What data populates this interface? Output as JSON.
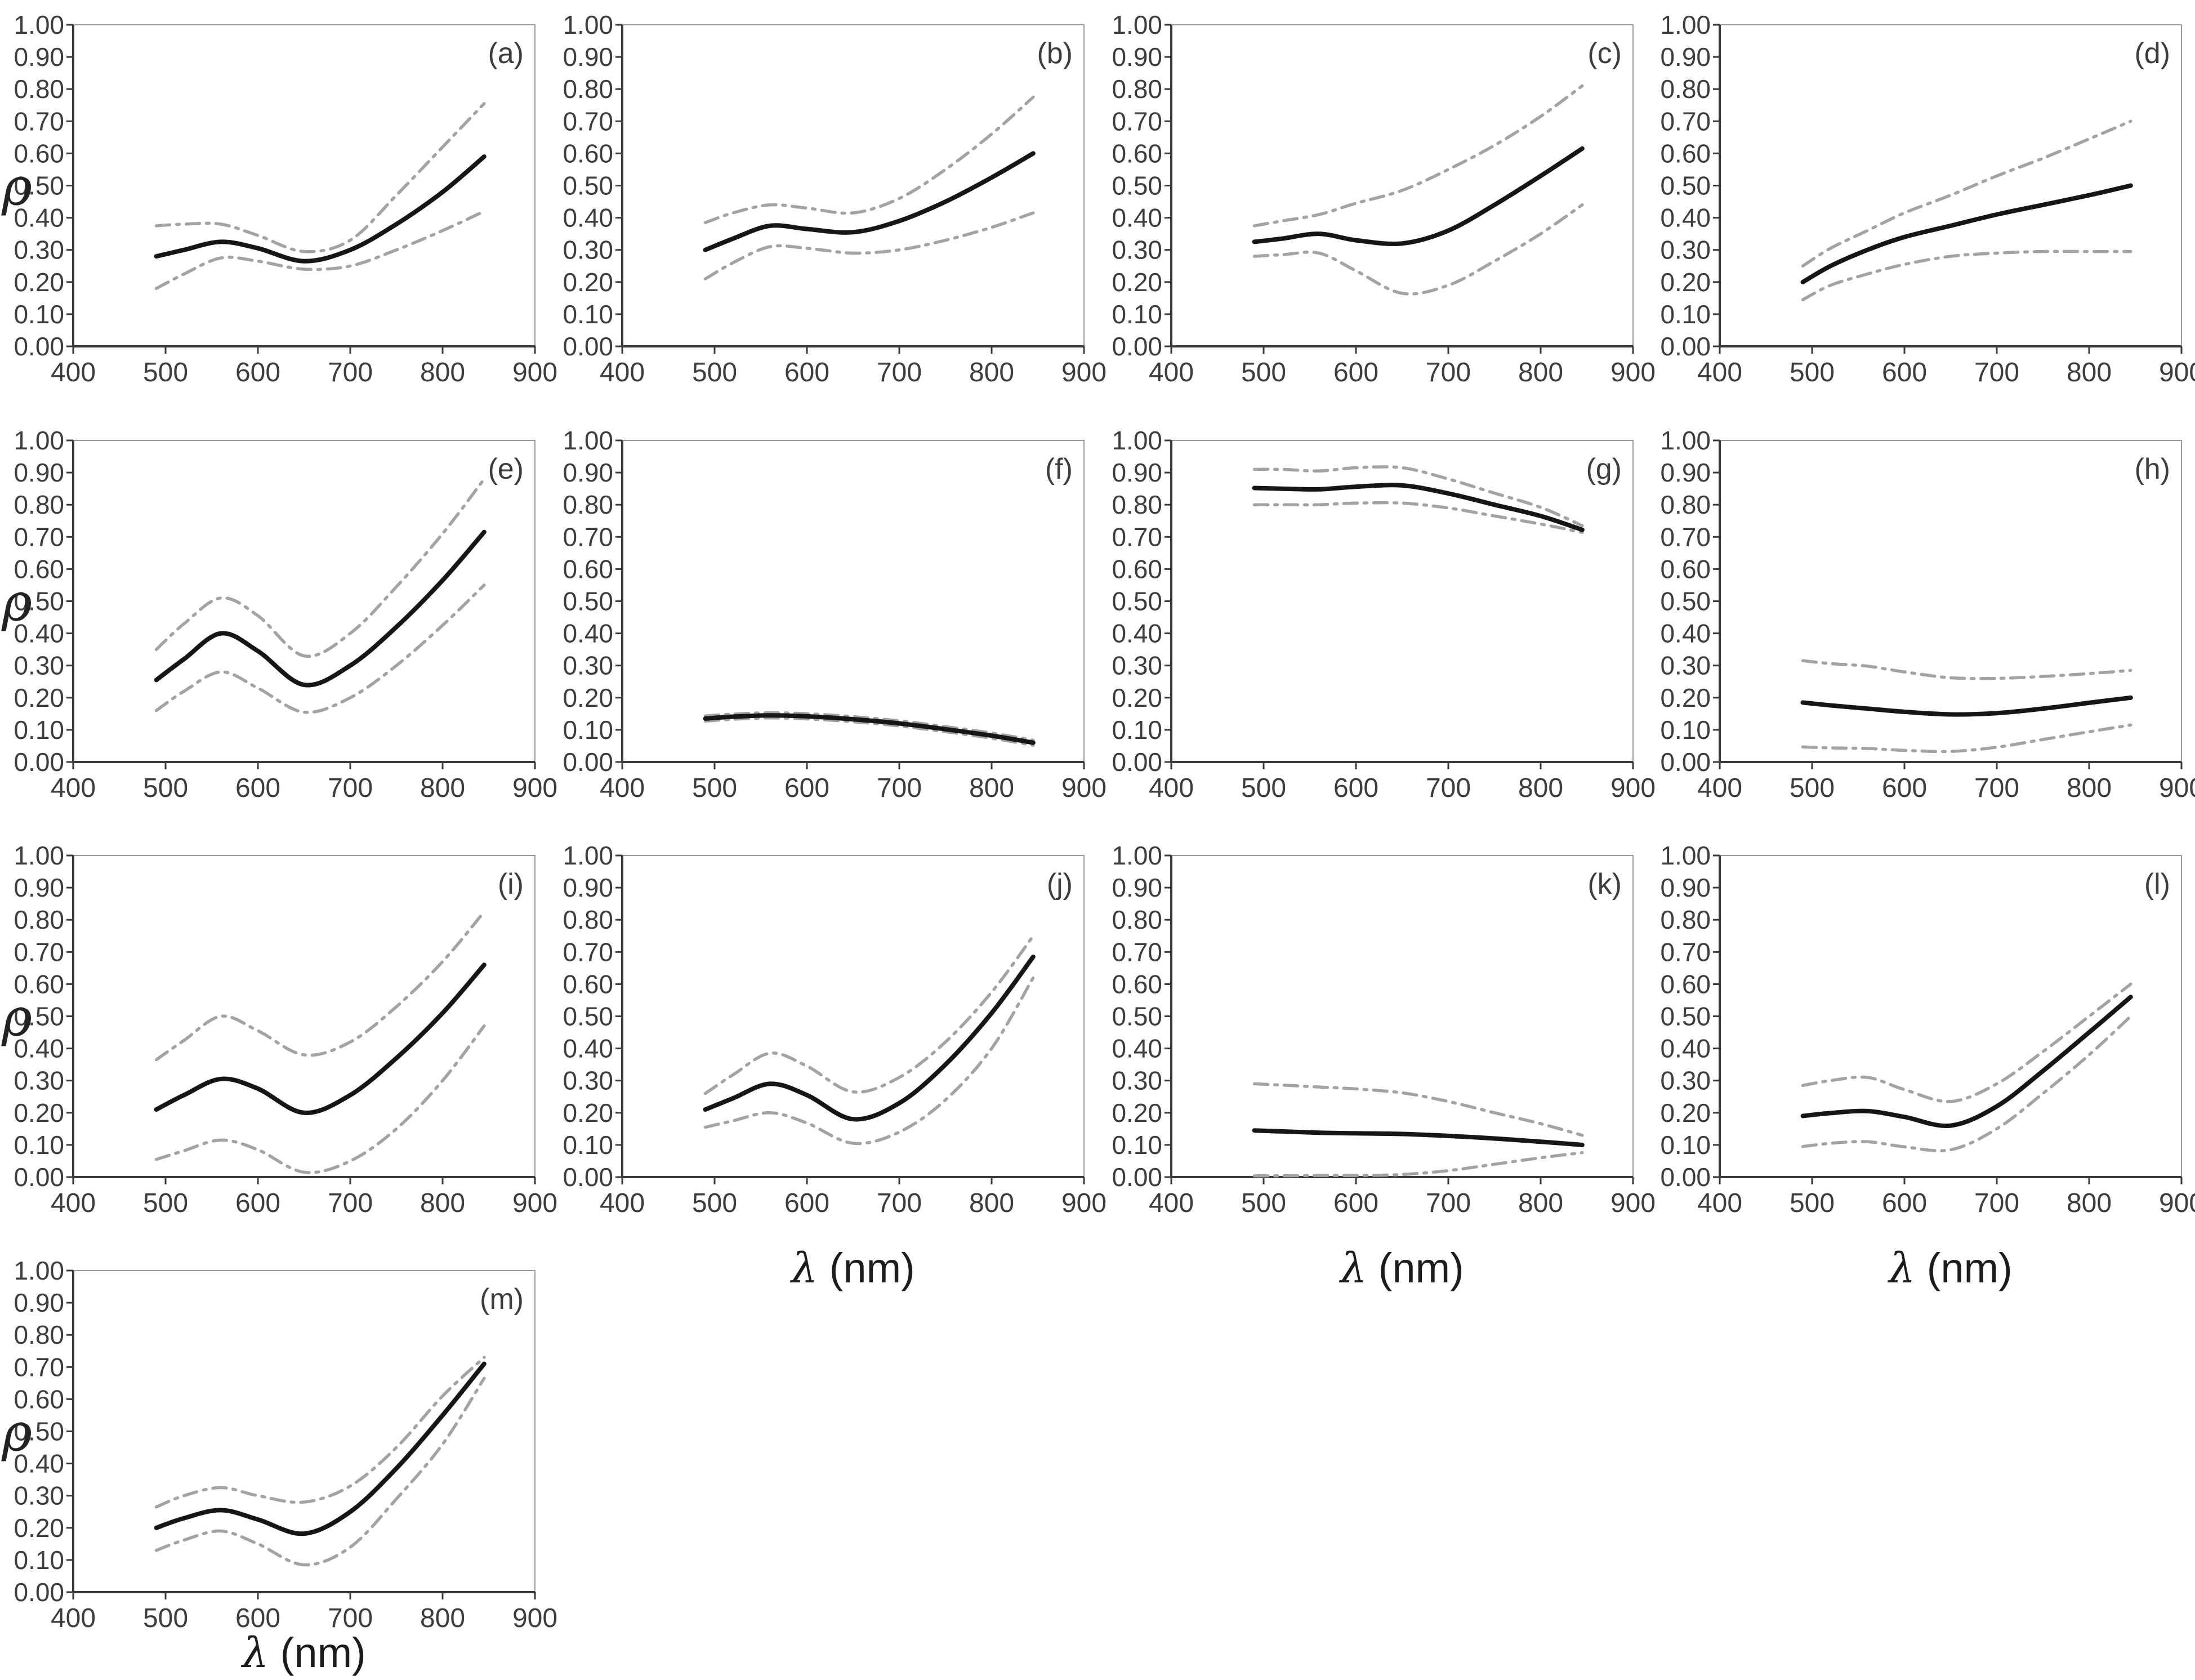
{
  "figure": {
    "ylabel": "ρ",
    "xlabel": "λ (nm)",
    "xlim": [
      400,
      900
    ],
    "ylim": [
      0.0,
      1.0
    ],
    "xticks": [
      "400",
      "500",
      "600",
      "700",
      "800",
      "900"
    ],
    "yticks": [
      "0.00",
      "0.10",
      "0.20",
      "0.30",
      "0.40",
      "0.50",
      "0.60",
      "0.70",
      "0.80",
      "0.90",
      "1.00"
    ],
    "grid": false,
    "legend": "none",
    "colors": {
      "mean_line": "#161616",
      "ci_band_line": "#a3a3a3",
      "axis": "#3a3a3a",
      "frame": "#9b9b9b",
      "tick_text": "#3d3d3d"
    },
    "line_styles": {
      "mean": "solid",
      "ci": "dash-dot"
    }
  },
  "chart_data": [
    {
      "type": "line",
      "label": "(a)",
      "row": 0,
      "col": 0,
      "show_ylabel": true,
      "show_xlabel": false,
      "x": [
        490,
        520,
        560,
        600,
        650,
        700,
        750,
        800,
        845
      ],
      "series": [
        {
          "name": "mean",
          "values": [
            0.28,
            0.3,
            0.325,
            0.305,
            0.265,
            0.3,
            0.38,
            0.48,
            0.59
          ]
        },
        {
          "name": "upper_ci",
          "values": [
            0.375,
            0.38,
            0.38,
            0.345,
            0.295,
            0.33,
            0.47,
            0.62,
            0.755
          ]
        },
        {
          "name": "lower_ci",
          "values": [
            0.18,
            0.225,
            0.275,
            0.265,
            0.24,
            0.25,
            0.3,
            0.36,
            0.42
          ]
        }
      ]
    },
    {
      "type": "line",
      "label": "(b)",
      "row": 0,
      "col": 1,
      "show_ylabel": false,
      "show_xlabel": false,
      "x": [
        490,
        520,
        560,
        600,
        650,
        700,
        750,
        800,
        845
      ],
      "series": [
        {
          "name": "mean",
          "values": [
            0.3,
            0.335,
            0.375,
            0.365,
            0.355,
            0.39,
            0.45,
            0.525,
            0.6
          ]
        },
        {
          "name": "upper_ci",
          "values": [
            0.385,
            0.415,
            0.44,
            0.43,
            0.415,
            0.46,
            0.55,
            0.66,
            0.775
          ]
        },
        {
          "name": "lower_ci",
          "values": [
            0.21,
            0.26,
            0.31,
            0.305,
            0.29,
            0.3,
            0.33,
            0.37,
            0.415
          ]
        }
      ]
    },
    {
      "type": "line",
      "label": "(c)",
      "row": 0,
      "col": 2,
      "show_ylabel": false,
      "show_xlabel": false,
      "x": [
        490,
        520,
        560,
        600,
        650,
        700,
        750,
        800,
        845
      ],
      "series": [
        {
          "name": "mean",
          "values": [
            0.325,
            0.335,
            0.35,
            0.33,
            0.32,
            0.36,
            0.44,
            0.53,
            0.615
          ]
        },
        {
          "name": "upper_ci",
          "values": [
            0.375,
            0.39,
            0.41,
            0.445,
            0.485,
            0.55,
            0.625,
            0.715,
            0.81
          ]
        },
        {
          "name": "lower_ci",
          "values": [
            0.28,
            0.285,
            0.29,
            0.235,
            0.165,
            0.19,
            0.265,
            0.35,
            0.44
          ]
        }
      ]
    },
    {
      "type": "line",
      "label": "(d)",
      "row": 0,
      "col": 3,
      "show_ylabel": false,
      "show_xlabel": false,
      "x": [
        490,
        520,
        560,
        600,
        650,
        700,
        750,
        800,
        845
      ],
      "series": [
        {
          "name": "mean",
          "values": [
            0.2,
            0.25,
            0.3,
            0.34,
            0.375,
            0.41,
            0.44,
            0.47,
            0.5
          ]
        },
        {
          "name": "upper_ci",
          "values": [
            0.25,
            0.305,
            0.36,
            0.415,
            0.47,
            0.53,
            0.585,
            0.645,
            0.7
          ]
        },
        {
          "name": "lower_ci",
          "values": [
            0.145,
            0.19,
            0.225,
            0.255,
            0.28,
            0.29,
            0.295,
            0.295,
            0.295
          ]
        }
      ]
    },
    {
      "type": "line",
      "label": "(e)",
      "row": 1,
      "col": 0,
      "show_ylabel": true,
      "show_xlabel": false,
      "x": [
        490,
        520,
        560,
        600,
        650,
        700,
        750,
        800,
        845
      ],
      "series": [
        {
          "name": "mean",
          "values": [
            0.255,
            0.32,
            0.4,
            0.345,
            0.24,
            0.3,
            0.42,
            0.565,
            0.715
          ]
        },
        {
          "name": "upper_ci",
          "values": [
            0.35,
            0.43,
            0.51,
            0.455,
            0.33,
            0.4,
            0.545,
            0.71,
            0.88
          ]
        },
        {
          "name": "lower_ci",
          "values": [
            0.16,
            0.22,
            0.28,
            0.23,
            0.155,
            0.2,
            0.3,
            0.425,
            0.55
          ]
        }
      ]
    },
    {
      "type": "line",
      "label": "(f)",
      "row": 1,
      "col": 1,
      "show_ylabel": false,
      "show_xlabel": false,
      "x": [
        490,
        520,
        560,
        600,
        650,
        700,
        750,
        800,
        845
      ],
      "series": [
        {
          "name": "mean",
          "values": [
            0.135,
            0.141,
            0.145,
            0.142,
            0.133,
            0.12,
            0.102,
            0.082,
            0.06
          ]
        },
        {
          "name": "upper_ci",
          "values": [
            0.143,
            0.149,
            0.153,
            0.15,
            0.141,
            0.128,
            0.11,
            0.09,
            0.068
          ]
        },
        {
          "name": "lower_ci",
          "values": [
            0.127,
            0.133,
            0.137,
            0.134,
            0.125,
            0.112,
            0.094,
            0.074,
            0.052
          ]
        }
      ]
    },
    {
      "type": "line",
      "label": "(g)",
      "row": 1,
      "col": 2,
      "show_ylabel": false,
      "show_xlabel": false,
      "x": [
        490,
        520,
        560,
        600,
        650,
        700,
        750,
        800,
        845
      ],
      "series": [
        {
          "name": "mean",
          "values": [
            0.852,
            0.85,
            0.848,
            0.856,
            0.86,
            0.835,
            0.8,
            0.765,
            0.722
          ]
        },
        {
          "name": "upper_ci",
          "values": [
            0.91,
            0.91,
            0.905,
            0.915,
            0.915,
            0.88,
            0.836,
            0.792,
            0.735
          ]
        },
        {
          "name": "lower_ci",
          "values": [
            0.8,
            0.8,
            0.8,
            0.805,
            0.805,
            0.79,
            0.765,
            0.74,
            0.714
          ]
        }
      ]
    },
    {
      "type": "line",
      "label": "(h)",
      "row": 1,
      "col": 3,
      "show_ylabel": false,
      "show_xlabel": false,
      "x": [
        490,
        520,
        560,
        600,
        650,
        700,
        750,
        800,
        845
      ],
      "series": [
        {
          "name": "mean",
          "values": [
            0.185,
            0.176,
            0.166,
            0.156,
            0.148,
            0.152,
            0.166,
            0.184,
            0.2
          ]
        },
        {
          "name": "upper_ci",
          "values": [
            0.315,
            0.306,
            0.298,
            0.28,
            0.262,
            0.26,
            0.266,
            0.275,
            0.285
          ]
        },
        {
          "name": "lower_ci",
          "values": [
            0.047,
            0.044,
            0.042,
            0.036,
            0.033,
            0.046,
            0.07,
            0.094,
            0.115
          ]
        }
      ]
    },
    {
      "type": "line",
      "label": "(i)",
      "row": 2,
      "col": 0,
      "show_ylabel": true,
      "show_xlabel": false,
      "x": [
        490,
        520,
        560,
        600,
        650,
        700,
        750,
        800,
        845
      ],
      "series": [
        {
          "name": "mean",
          "values": [
            0.21,
            0.255,
            0.305,
            0.275,
            0.2,
            0.255,
            0.37,
            0.51,
            0.66
          ]
        },
        {
          "name": "upper_ci",
          "values": [
            0.365,
            0.425,
            0.5,
            0.455,
            0.38,
            0.42,
            0.53,
            0.67,
            0.825
          ]
        },
        {
          "name": "lower_ci",
          "values": [
            0.055,
            0.082,
            0.115,
            0.085,
            0.015,
            0.05,
            0.15,
            0.3,
            0.47
          ]
        }
      ]
    },
    {
      "type": "line",
      "label": "(j)",
      "row": 2,
      "col": 1,
      "show_ylabel": false,
      "show_xlabel": true,
      "x": [
        490,
        520,
        560,
        600,
        650,
        700,
        750,
        800,
        845
      ],
      "series": [
        {
          "name": "mean",
          "values": [
            0.21,
            0.245,
            0.29,
            0.255,
            0.18,
            0.23,
            0.35,
            0.51,
            0.685
          ]
        },
        {
          "name": "upper_ci",
          "values": [
            0.26,
            0.318,
            0.385,
            0.345,
            0.265,
            0.31,
            0.42,
            0.575,
            0.75
          ]
        },
        {
          "name": "lower_ci",
          "values": [
            0.155,
            0.175,
            0.2,
            0.168,
            0.105,
            0.14,
            0.24,
            0.4,
            0.62
          ]
        }
      ]
    },
    {
      "type": "line",
      "label": "(k)",
      "row": 2,
      "col": 2,
      "show_ylabel": false,
      "show_xlabel": true,
      "x": [
        490,
        520,
        560,
        600,
        650,
        700,
        750,
        800,
        845
      ],
      "series": [
        {
          "name": "mean",
          "values": [
            0.145,
            0.142,
            0.138,
            0.136,
            0.134,
            0.128,
            0.12,
            0.11,
            0.1
          ]
        },
        {
          "name": "upper_ci",
          "values": [
            0.29,
            0.286,
            0.28,
            0.274,
            0.262,
            0.235,
            0.2,
            0.166,
            0.13
          ]
        },
        {
          "name": "lower_ci",
          "values": [
            0.004,
            0.004,
            0.005,
            0.005,
            0.008,
            0.02,
            0.04,
            0.06,
            0.076
          ]
        }
      ]
    },
    {
      "type": "line",
      "label": "(l)",
      "row": 2,
      "col": 3,
      "show_ylabel": false,
      "show_xlabel": true,
      "x": [
        490,
        520,
        560,
        600,
        650,
        700,
        750,
        800,
        845
      ],
      "series": [
        {
          "name": "mean",
          "values": [
            0.19,
            0.199,
            0.205,
            0.187,
            0.16,
            0.22,
            0.33,
            0.45,
            0.56
          ]
        },
        {
          "name": "upper_ci",
          "values": [
            0.285,
            0.3,
            0.31,
            0.272,
            0.235,
            0.29,
            0.39,
            0.5,
            0.6
          ]
        },
        {
          "name": "lower_ci",
          "values": [
            0.095,
            0.105,
            0.11,
            0.094,
            0.085,
            0.15,
            0.26,
            0.38,
            0.5
          ]
        }
      ]
    },
    {
      "type": "line",
      "label": "(m)",
      "row": 3,
      "col": 0,
      "show_ylabel": true,
      "show_xlabel": true,
      "x": [
        490,
        520,
        560,
        600,
        650,
        700,
        750,
        800,
        845
      ],
      "series": [
        {
          "name": "mean",
          "values": [
            0.2,
            0.23,
            0.255,
            0.226,
            0.182,
            0.25,
            0.385,
            0.55,
            0.71
          ]
        },
        {
          "name": "upper_ci",
          "values": [
            0.265,
            0.3,
            0.325,
            0.3,
            0.28,
            0.33,
            0.45,
            0.61,
            0.73
          ]
        },
        {
          "name": "lower_ci",
          "values": [
            0.13,
            0.162,
            0.19,
            0.15,
            0.085,
            0.14,
            0.29,
            0.46,
            0.665
          ]
        }
      ]
    }
  ]
}
